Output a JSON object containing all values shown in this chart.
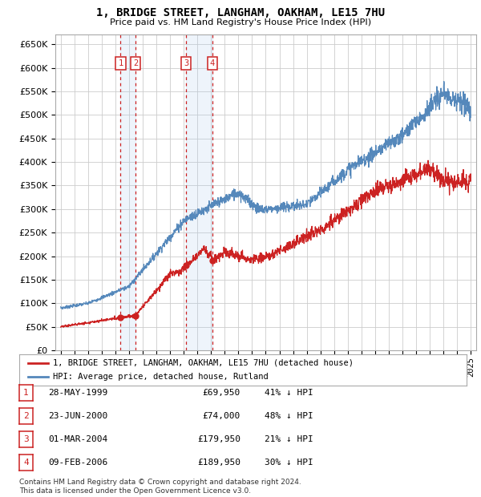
{
  "title": "1, BRIDGE STREET, LANGHAM, OAKHAM, LE15 7HU",
  "subtitle": "Price paid vs. HM Land Registry's House Price Index (HPI)",
  "legend_line1": "1, BRIDGE STREET, LANGHAM, OAKHAM, LE15 7HU (detached house)",
  "legend_line2": "HPI: Average price, detached house, Rutland",
  "footer1": "Contains HM Land Registry data © Crown copyright and database right 2024.",
  "footer2": "This data is licensed under the Open Government Licence v3.0.",
  "sale_labels": [
    "1",
    "2",
    "3",
    "4"
  ],
  "sale_dates_str": [
    "28-MAY-1999",
    "23-JUN-2000",
    "01-MAR-2004",
    "09-FEB-2006"
  ],
  "sale_prices_str": [
    "£69,950",
    "£74,000",
    "£179,950",
    "£189,950"
  ],
  "sale_hpi_pct": [
    "41% ↓ HPI",
    "48% ↓ HPI",
    "21% ↓ HPI",
    "30% ↓ HPI"
  ],
  "sale_years": [
    1999.38,
    2000.47,
    2004.16,
    2006.1
  ],
  "sale_prices": [
    69950,
    74000,
    179950,
    189950
  ],
  "ylim": [
    0,
    670000
  ],
  "yticks": [
    0,
    50000,
    100000,
    150000,
    200000,
    250000,
    300000,
    350000,
    400000,
    450000,
    500000,
    550000,
    600000,
    650000
  ],
  "xlim_start": 1994.6,
  "xlim_end": 2025.4,
  "red_line_color": "#cc2222",
  "blue_line_color": "#5588bb",
  "grid_color": "#cccccc",
  "vline_color": "#cc2222",
  "shade_color": "#aaccee",
  "box_color": "#cc2222",
  "background_color": "#ffffff"
}
